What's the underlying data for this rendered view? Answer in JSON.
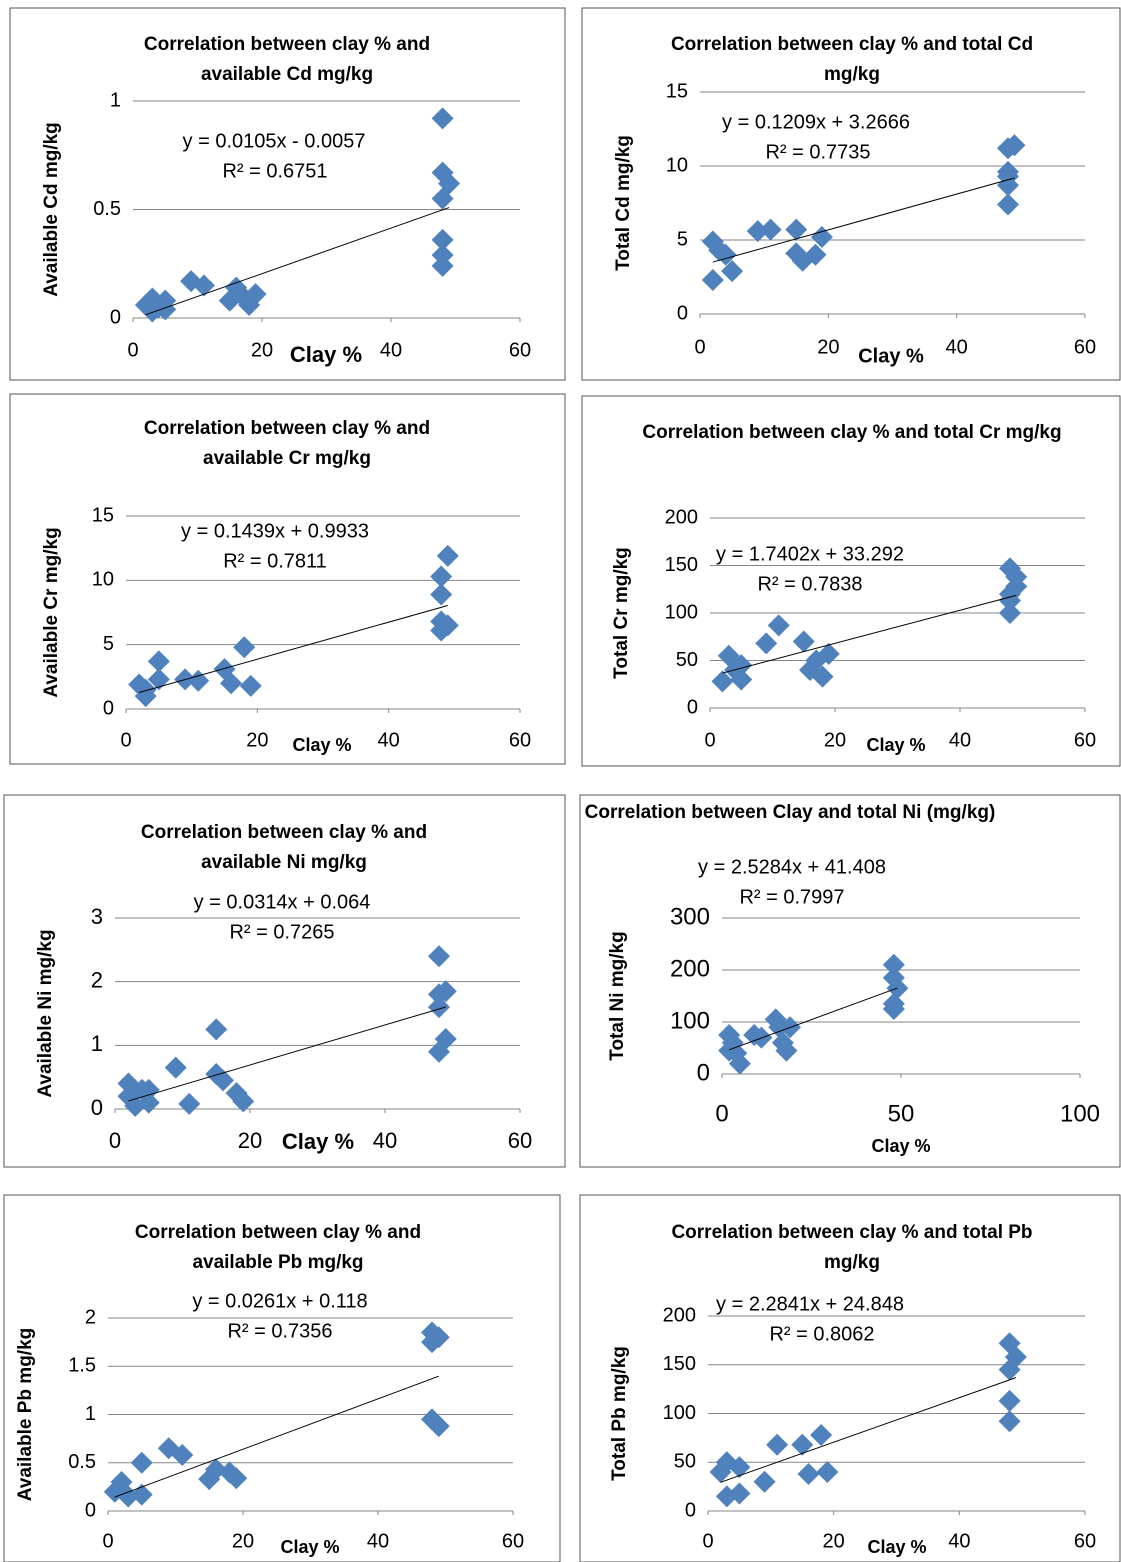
{
  "chart_data": [
    {
      "type": "scatter",
      "title": "Correlation between clay % and available Cd mg/kg",
      "x_label": "Clay %",
      "y_label": "Available Cd mg/kg",
      "equation": "y = 0.0105x - 0.0057",
      "r_squared": "R² = 0.6751",
      "trendline": {
        "slope": 0.0105,
        "intercept": -0.0057
      },
      "color": "#4f81bd",
      "grid": true,
      "x": [
        2,
        3,
        3,
        4,
        5,
        5,
        9,
        11,
        15,
        16,
        17,
        18,
        19,
        48,
        48,
        49,
        48,
        48,
        48,
        48
      ],
      "values": [
        0.06,
        0.09,
        0.03,
        0.05,
        0.08,
        0.04,
        0.17,
        0.15,
        0.08,
        0.14,
        0.1,
        0.06,
        0.11,
        0.92,
        0.67,
        0.62,
        0.55,
        0.36,
        0.29,
        0.24
      ],
      "xlim": [
        0,
        60
      ],
      "xticks": [
        0,
        20,
        40,
        60
      ],
      "ylim": [
        0,
        1
      ],
      "yticks": [
        0,
        0.5,
        1
      ]
    },
    {
      "type": "scatter",
      "title": "Correlation between clay % and total Cd mg/kg",
      "x_label": "Clay %",
      "y_label": "Total Cd mg/kg",
      "equation": "y = 0.1209x + 3.2666",
      "r_squared": "R² = 0.7735",
      "trendline": {
        "slope": 0.1209,
        "intercept": 3.2666
      },
      "color": "#4f81bd",
      "grid": true,
      "x": [
        2,
        2,
        3,
        4,
        5,
        9,
        11,
        15,
        15,
        16,
        18,
        19,
        48,
        49,
        48,
        48,
        48,
        48
      ],
      "values": [
        4.9,
        2.3,
        4.3,
        4,
        2.9,
        5.6,
        5.7,
        5.7,
        4.1,
        3.6,
        4,
        5.2,
        11.2,
        11.4,
        9.6,
        8.7,
        7.4,
        9.3
      ],
      "xlim": [
        0,
        60
      ],
      "xticks": [
        0,
        20,
        40,
        60
      ],
      "ylim": [
        0,
        15
      ],
      "yticks": [
        0,
        5,
        10,
        15
      ]
    },
    {
      "type": "scatter",
      "title": "Correlation between clay % and available Cr mg/kg",
      "x_label": "Clay %",
      "y_label": "Available Cr mg/kg",
      "equation": "y = 0.1439x + 0.9933",
      "r_squared": "R² = 0.7811",
      "trendline": {
        "slope": 0.1439,
        "intercept": 0.9933
      },
      "color": "#4f81bd",
      "grid": true,
      "x": [
        2,
        3,
        3,
        5,
        5,
        9,
        11,
        15,
        16,
        18,
        19,
        48,
        48,
        49,
        48,
        48,
        49
      ],
      "values": [
        1.9,
        1,
        1.5,
        3.7,
        2.3,
        2.3,
        2.2,
        3.1,
        2,
        4.8,
        1.8,
        6.8,
        6.1,
        6.5,
        8.9,
        10.3,
        11.9
      ],
      "xlim": [
        0,
        60
      ],
      "xticks": [
        0,
        20,
        40,
        60
      ],
      "ylim": [
        0,
        15
      ],
      "yticks": [
        0,
        5,
        10,
        15
      ]
    },
    {
      "type": "scatter",
      "title": "Correlation between clay % and total Cr mg/kg",
      "x_label": "Clay %",
      "y_label": "Total Cr mg/kg",
      "equation": "y = 1.7402x + 33.292",
      "r_squared": "R² = 0.7838",
      "trendline": {
        "slope": 1.7402,
        "intercept": 33.292
      },
      "color": "#4f81bd",
      "grid": true,
      "x": [
        2,
        3,
        4,
        5,
        5,
        9,
        11,
        15,
        16,
        17,
        18,
        19,
        48,
        48,
        48,
        49,
        49,
        48
      ],
      "values": [
        28,
        55,
        40,
        30,
        45,
        68,
        87,
        70,
        40,
        50,
        33,
        57,
        147,
        113,
        100,
        138,
        128,
        120
      ],
      "xlim": [
        0,
        60
      ],
      "xticks": [
        0,
        20,
        40,
        60
      ],
      "ylim": [
        0,
        200
      ],
      "yticks": [
        0,
        50,
        100,
        150,
        200
      ]
    },
    {
      "type": "scatter",
      "title": "Correlation between clay % and available Ni mg/kg",
      "x_label": "Clay %",
      "y_label": "Available Ni mg/kg",
      "equation": "y = 0.0314x + 0.064",
      "r_squared": "R² = 0.7265",
      "trendline": {
        "slope": 0.0314,
        "intercept": 0.064
      },
      "color": "#4f81bd",
      "grid": true,
      "x": [
        2,
        2,
        3,
        4,
        5,
        5,
        9,
        11,
        15,
        15,
        16,
        18,
        19,
        48,
        48,
        49,
        48,
        48,
        49
      ],
      "values": [
        0.2,
        0.4,
        0.05,
        0.3,
        0.1,
        0.3,
        0.65,
        0.08,
        1.25,
        0.55,
        0.45,
        0.25,
        0.12,
        2.4,
        1.8,
        1.85,
        1.6,
        0.9,
        1.1
      ],
      "xlim": [
        0,
        60
      ],
      "xticks": [
        0,
        20,
        40,
        60
      ],
      "ylim": [
        0,
        3
      ],
      "yticks": [
        0,
        1,
        2,
        3
      ]
    },
    {
      "type": "scatter",
      "title": "Correlation between Clay and total Ni (mg/kg)",
      "x_label": "Clay %",
      "y_label": "Total Ni mg/kg",
      "equation": "y = 2.5284x + 41.408",
      "r_squared": "R² = 0.7997",
      "trendline": {
        "slope": 2.5284,
        "intercept": 41.408
      },
      "color": "#4f81bd",
      "grid": true,
      "x": [
        2,
        2,
        3,
        4,
        5,
        9,
        11,
        15,
        16,
        17,
        18,
        19,
        48,
        48,
        49,
        48,
        48
      ],
      "values": [
        75,
        45,
        60,
        40,
        20,
        75,
        70,
        105,
        90,
        60,
        45,
        90,
        210,
        185,
        165,
        135,
        125
      ],
      "xlim": [
        0,
        100
      ],
      "xticks": [
        0,
        50,
        100
      ],
      "ylim": [
        0,
        300
      ],
      "yticks": [
        0,
        100,
        200,
        300
      ]
    },
    {
      "type": "scatter",
      "title": "Correlation between clay % and available Pb mg/kg",
      "x_label": "Clay %",
      "y_label": "Available Pb mg/kg",
      "equation": "y = 0.0261x + 0.118",
      "r_squared": "R² = 0.7356",
      "trendline": {
        "slope": 0.0261,
        "intercept": 0.118
      },
      "color": "#4f81bd",
      "grid": true,
      "x": [
        1,
        2,
        3,
        5,
        5,
        9,
        11,
        15,
        16,
        18,
        19,
        48,
        48,
        48,
        49,
        49
      ],
      "values": [
        0.2,
        0.3,
        0.15,
        0.5,
        0.17,
        0.65,
        0.58,
        0.33,
        0.43,
        0.4,
        0.34,
        1.75,
        1.85,
        0.95,
        0.88,
        1.8
      ],
      "xlim": [
        0,
        60
      ],
      "xticks": [
        0,
        20,
        40,
        60
      ],
      "ylim": [
        0,
        2
      ],
      "yticks": [
        0,
        0.5,
        1,
        1.5,
        2
      ]
    },
    {
      "type": "scatter",
      "title": "Correlation between clay % and total Pb mg/kg",
      "x_label": "Clay %",
      "y_label": "Total Pb mg/kg",
      "equation": "y = 2.2841x + 24.848",
      "r_squared": "R² = 0.8062",
      "trendline": {
        "slope": 2.2841,
        "intercept": 24.848
      },
      "color": "#4f81bd",
      "grid": true,
      "x": [
        2,
        3,
        3,
        5,
        5,
        9,
        11,
        15,
        16,
        18,
        19,
        48,
        49,
        48,
        48,
        48
      ],
      "values": [
        40,
        50,
        15,
        18,
        45,
        30,
        68,
        68,
        38,
        78,
        40,
        172,
        158,
        145,
        113,
        92
      ],
      "xlim": [
        0,
        60
      ],
      "xticks": [
        0,
        20,
        40,
        60
      ],
      "ylim": [
        0,
        200
      ],
      "yticks": [
        0,
        50,
        100,
        150,
        200
      ]
    }
  ]
}
